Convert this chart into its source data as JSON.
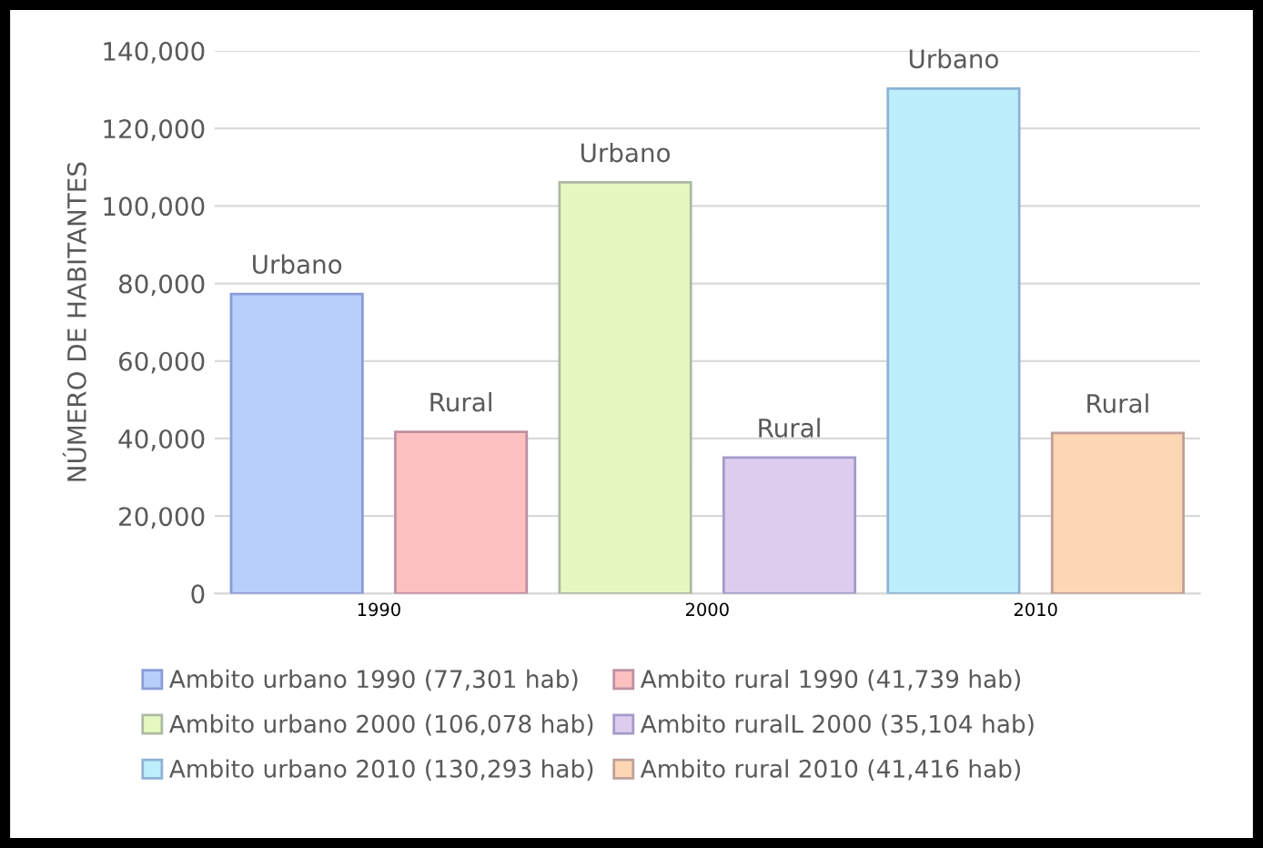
{
  "chart_data": {
    "type": "bar",
    "ylabel": "NÚMERO DE HABITANTES",
    "categories": [
      "1990",
      "2000",
      "2010"
    ],
    "series": [
      {
        "name": "Ambito urbano 1990 (77,301 hab)",
        "color": "#b9cffb",
        "values": [
          77301,
          null,
          null
        ],
        "value_labels": [
          "Urbano",
          null,
          null
        ]
      },
      {
        "name": "Ambito rural 1990 (41,739 hab)",
        "color": "#fdc0c0",
        "values": [
          41739,
          null,
          null
        ],
        "value_labels": [
          "Rural",
          null,
          null
        ]
      },
      {
        "name": "Ambito urbano 2000 (106,078 hab)",
        "color": "#e6f8c0",
        "values": [
          null,
          106078,
          null
        ],
        "value_labels": [
          null,
          "Urbano",
          null
        ]
      },
      {
        "name": "Ambito ruralL 2000 (35,104 hab)",
        "color": "#dccdee",
        "values": [
          null,
          35104,
          null
        ],
        "value_labels": [
          null,
          "Rural",
          null
        ]
      },
      {
        "name": "Ambito urbano 2010 (130,293 hab)",
        "color": "#bdeefb",
        "values": [
          null,
          null,
          130293
        ],
        "value_labels": [
          null,
          null,
          "Urbano"
        ]
      },
      {
        "name": "Ambito rural 2010 (41,416 hab)",
        "color": "#fdd6b4",
        "values": [
          null,
          null,
          41416
        ],
        "value_labels": [
          null,
          null,
          "Rural"
        ]
      }
    ],
    "ylim": [
      0,
      140000
    ],
    "yticks": [
      0,
      {
        "value": 20000,
        "label": "20,000"
      },
      {
        "value": 40000,
        "label": "40,000"
      },
      {
        "value": 60000,
        "label": "60,000"
      },
      {
        "value": 80000,
        "label": "80,000"
      },
      {
        "value": 100000,
        "label": "100,000"
      },
      {
        "value": 120000,
        "label": "120,000"
      },
      {
        "value": 140000,
        "label": "140,000"
      }
    ],
    "grid": "y",
    "legend": "bottom"
  }
}
